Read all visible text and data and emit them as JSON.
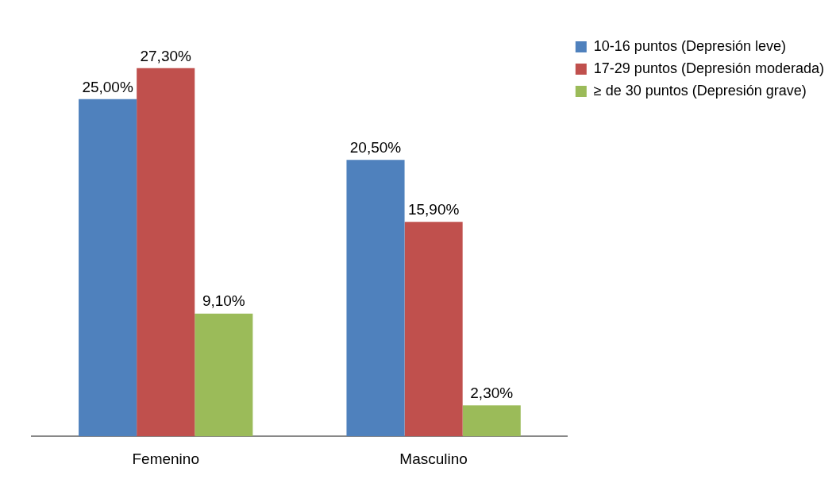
{
  "chart_data": {
    "type": "bar",
    "categories": [
      "Femenino",
      "Masculino"
    ],
    "series": [
      {
        "name": "10-16 puntos (Depresión leve)",
        "color": "#4f81bd",
        "values": [
          25.0,
          20.5
        ],
        "value_labels": [
          "25,00%",
          "20,50%"
        ]
      },
      {
        "name": "17-29 puntos (Depresión moderada)",
        "color": "#c0504d",
        "values": [
          27.3,
          15.9
        ],
        "value_labels": [
          "27,30%",
          "15,90%"
        ]
      },
      {
        "name": "≥ de 30 puntos (Depresión grave)",
        "color": "#9bbb59",
        "values": [
          9.1,
          2.3
        ],
        "value_labels": [
          "9,10%",
          "2,30%"
        ]
      }
    ],
    "legend": "top right",
    "grid": false,
    "tick_labels": "x"
  }
}
